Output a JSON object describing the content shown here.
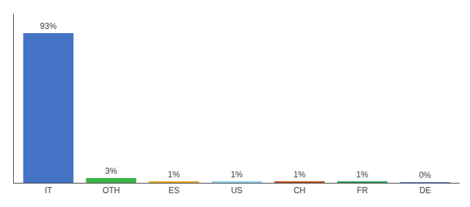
{
  "chart_data": {
    "type": "bar",
    "categories": [
      "IT",
      "OTH",
      "ES",
      "US",
      "CH",
      "FR",
      "DE"
    ],
    "values": [
      93,
      3,
      1,
      1,
      1,
      1,
      0.2
    ],
    "value_labels": [
      "93%",
      "3%",
      "1%",
      "1%",
      "1%",
      "1%",
      "0%"
    ],
    "data_labels": true,
    "colors": [
      "#4472C4",
      "#3CB54A",
      "#E8A020",
      "#87CEEB",
      "#B84B1C",
      "#2E9E4F",
      "#4472C4"
    ],
    "ylim": [
      0,
      105
    ],
    "grid": false,
    "tick_labels": "x"
  }
}
